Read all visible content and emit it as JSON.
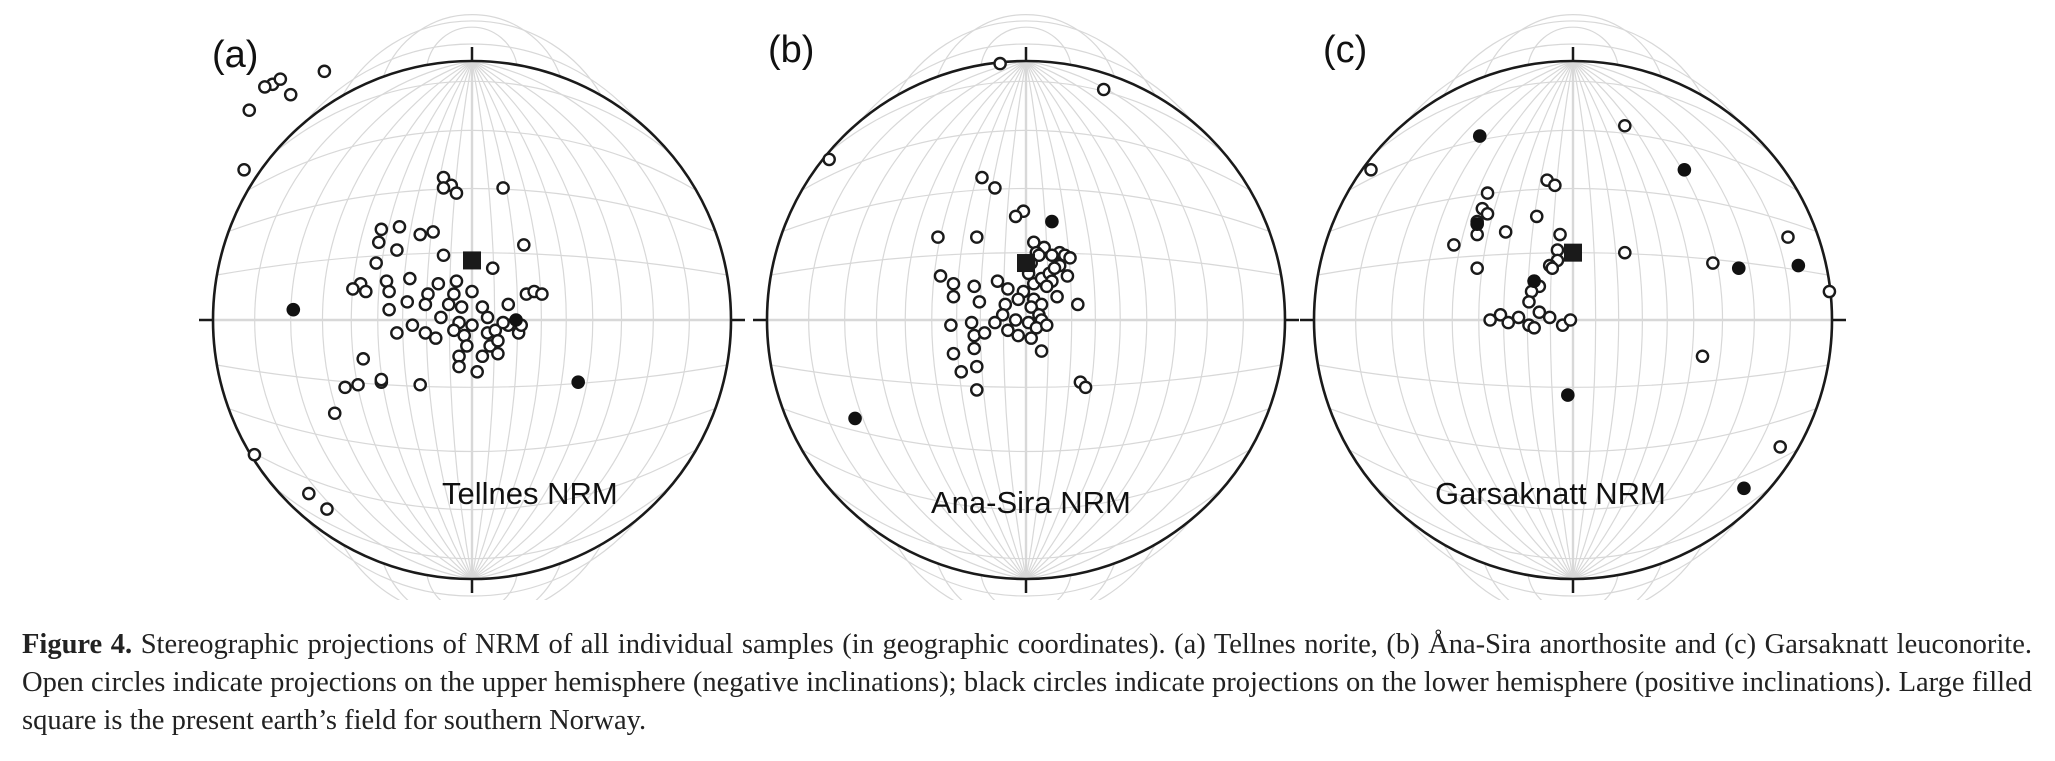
{
  "figure": {
    "panels": [
      {
        "id": "a",
        "label": "(a)",
        "title": "Tellnes NRM",
        "open": [
          [
            -0.77,
            -0.91
          ],
          [
            -0.8,
            -0.9
          ],
          [
            -0.74,
            -0.93
          ],
          [
            -0.57,
            -0.96
          ],
          [
            -0.88,
            -0.58
          ],
          [
            -0.7,
            -0.87
          ],
          [
            -0.86,
            -0.81
          ],
          [
            -0.11,
            -0.55
          ],
          [
            -0.08,
            -0.52
          ],
          [
            -0.06,
            -0.49
          ],
          [
            -0.11,
            -0.51
          ],
          [
            0.12,
            -0.51
          ],
          [
            -0.35,
            -0.35
          ],
          [
            -0.28,
            -0.36
          ],
          [
            -0.15,
            -0.34
          ],
          [
            -0.2,
            -0.33
          ],
          [
            -0.36,
            -0.3
          ],
          [
            -0.29,
            -0.27
          ],
          [
            -0.11,
            -0.25
          ],
          [
            0.2,
            -0.29
          ],
          [
            0.08,
            -0.2
          ],
          [
            -0.37,
            -0.22
          ],
          [
            -0.43,
            -0.14
          ],
          [
            -0.46,
            -0.12
          ],
          [
            -0.41,
            -0.11
          ],
          [
            -0.33,
            -0.15
          ],
          [
            -0.32,
            -0.11
          ],
          [
            -0.24,
            -0.16
          ],
          [
            -0.13,
            -0.14
          ],
          [
            -0.06,
            -0.15
          ],
          [
            0.0,
            -0.11
          ],
          [
            -0.07,
            -0.1
          ],
          [
            -0.17,
            -0.1
          ],
          [
            -0.32,
            -0.04
          ],
          [
            -0.25,
            -0.07
          ],
          [
            -0.18,
            -0.06
          ],
          [
            -0.09,
            -0.06
          ],
          [
            -0.04,
            -0.05
          ],
          [
            0.04,
            -0.05
          ],
          [
            0.06,
            -0.01
          ],
          [
            0.21,
            -0.1
          ],
          [
            0.24,
            -0.11
          ],
          [
            0.27,
            -0.1
          ],
          [
            0.14,
            -0.06
          ],
          [
            -0.23,
            0.02
          ],
          [
            -0.12,
            -0.01
          ],
          [
            -0.05,
            0.01
          ],
          [
            0.0,
            0.02
          ],
          [
            0.14,
            0.02
          ],
          [
            -0.29,
            0.05
          ],
          [
            -0.18,
            0.05
          ],
          [
            -0.14,
            0.07
          ],
          [
            -0.07,
            0.04
          ],
          [
            -0.03,
            0.06
          ],
          [
            -0.02,
            0.1
          ],
          [
            0.06,
            0.05
          ],
          [
            0.07,
            0.1
          ],
          [
            0.1,
            0.13
          ],
          [
            0.04,
            0.14
          ],
          [
            -0.05,
            0.14
          ],
          [
            0.09,
            0.04
          ],
          [
            0.1,
            0.08
          ],
          [
            0.18,
            0.05
          ],
          [
            0.12,
            0.01
          ],
          [
            0.19,
            0.02
          ],
          [
            -0.42,
            0.15
          ],
          [
            -0.35,
            0.24
          ],
          [
            -0.44,
            0.25
          ],
          [
            -0.49,
            0.26
          ],
          [
            -0.2,
            0.25
          ],
          [
            -0.35,
            0.23
          ],
          [
            -0.53,
            0.36
          ],
          [
            -0.84,
            0.52
          ],
          [
            -0.63,
            0.67
          ],
          [
            -0.56,
            0.73
          ],
          [
            -0.05,
            0.18
          ],
          [
            0.02,
            0.2
          ]
        ],
        "filled": [
          [
            -0.69,
            -0.04
          ],
          [
            0.17,
            0.0
          ],
          [
            0.41,
            0.24
          ]
        ],
        "field": [
          0.0,
          -0.23
        ]
      },
      {
        "id": "b",
        "label": "(b)",
        "title": "Ana-Sira NRM",
        "open": [
          [
            -0.1,
            -0.99
          ],
          [
            0.3,
            -0.89
          ],
          [
            -0.76,
            -0.62
          ],
          [
            -0.17,
            -0.55
          ],
          [
            -0.12,
            -0.51
          ],
          [
            -0.01,
            -0.42
          ],
          [
            -0.04,
            -0.4
          ],
          [
            -0.34,
            -0.32
          ],
          [
            -0.19,
            -0.32
          ],
          [
            0.03,
            -0.3
          ],
          [
            0.07,
            -0.28
          ],
          [
            0.04,
            -0.26
          ],
          [
            0.13,
            -0.26
          ],
          [
            0.05,
            -0.25
          ],
          [
            0.1,
            -0.25
          ],
          [
            0.15,
            -0.25
          ],
          [
            0.17,
            -0.24
          ],
          [
            0.02,
            -0.22
          ],
          [
            -0.33,
            -0.17
          ],
          [
            -0.28,
            -0.14
          ],
          [
            -0.2,
            -0.13
          ],
          [
            -0.11,
            -0.15
          ],
          [
            -0.07,
            -0.12
          ],
          [
            -0.01,
            -0.11
          ],
          [
            0.01,
            -0.18
          ],
          [
            0.03,
            -0.14
          ],
          [
            0.06,
            -0.16
          ],
          [
            0.09,
            -0.18
          ],
          [
            0.13,
            -0.21
          ],
          [
            0.11,
            -0.2
          ],
          [
            0.16,
            -0.17
          ],
          [
            0.1,
            -0.15
          ],
          [
            0.08,
            -0.13
          ],
          [
            0.12,
            -0.09
          ],
          [
            -0.28,
            -0.09
          ],
          [
            -0.18,
            -0.07
          ],
          [
            -0.08,
            -0.06
          ],
          [
            -0.03,
            -0.08
          ],
          [
            0.03,
            -0.08
          ],
          [
            0.06,
            -0.06
          ],
          [
            -0.09,
            -0.02
          ],
          [
            0.02,
            -0.05
          ],
          [
            0.05,
            -0.02
          ],
          [
            -0.29,
            0.02
          ],
          [
            -0.21,
            0.01
          ],
          [
            -0.12,
            0.01
          ],
          [
            -0.04,
            0.0
          ],
          [
            0.01,
            0.01
          ],
          [
            0.06,
            0.0
          ],
          [
            0.2,
            -0.06
          ],
          [
            -0.2,
            0.06
          ],
          [
            -0.07,
            0.04
          ],
          [
            -0.03,
            0.06
          ],
          [
            -0.16,
            0.05
          ],
          [
            0.04,
            0.03
          ],
          [
            0.08,
            0.02
          ],
          [
            0.02,
            0.07
          ],
          [
            -0.2,
            0.11
          ],
          [
            -0.28,
            0.13
          ],
          [
            -0.19,
            0.18
          ],
          [
            -0.25,
            0.2
          ],
          [
            0.06,
            0.12
          ],
          [
            0.21,
            0.24
          ],
          [
            0.23,
            0.26
          ],
          [
            -0.19,
            0.27
          ]
        ],
        "filled": [
          [
            0.1,
            -0.38
          ],
          [
            -0.66,
            0.38
          ]
        ],
        "field": [
          0.0,
          -0.22
        ]
      },
      {
        "id": "c",
        "label": "(c)",
        "title": "Garsaknatt NRM",
        "open": [
          [
            -0.78,
            -0.58
          ],
          [
            0.2,
            -0.75
          ],
          [
            -0.33,
            -0.49
          ],
          [
            -0.35,
            -0.43
          ],
          [
            -0.33,
            -0.41
          ],
          [
            -0.37,
            -0.38
          ],
          [
            -0.37,
            -0.33
          ],
          [
            -0.46,
            -0.29
          ],
          [
            -0.26,
            -0.34
          ],
          [
            -0.1,
            -0.54
          ],
          [
            -0.07,
            -0.52
          ],
          [
            -0.14,
            -0.4
          ],
          [
            -0.05,
            -0.33
          ],
          [
            -0.06,
            -0.27
          ],
          [
            -0.06,
            -0.23
          ],
          [
            -0.09,
            -0.21
          ],
          [
            -0.08,
            -0.2
          ],
          [
            0.2,
            -0.26
          ],
          [
            0.54,
            -0.22
          ],
          [
            0.83,
            -0.32
          ],
          [
            -0.37,
            -0.2
          ],
          [
            -0.15,
            -0.15
          ],
          [
            -0.13,
            -0.13
          ],
          [
            -0.16,
            -0.11
          ],
          [
            -0.17,
            -0.07
          ],
          [
            -0.32,
            0.0
          ],
          [
            -0.28,
            -0.02
          ],
          [
            -0.25,
            0.01
          ],
          [
            -0.21,
            -0.01
          ],
          [
            -0.17,
            0.02
          ],
          [
            -0.13,
            -0.03
          ],
          [
            -0.15,
            0.03
          ],
          [
            -0.09,
            -0.01
          ],
          [
            -0.04,
            0.02
          ],
          [
            -0.01,
            0.0
          ],
          [
            0.5,
            0.14
          ],
          [
            0.99,
            -0.11
          ],
          [
            0.8,
            0.49
          ]
        ],
        "filled": [
          [
            -0.36,
            -0.71
          ],
          [
            -0.37,
            -0.37
          ],
          [
            -0.15,
            -0.15
          ],
          [
            0.43,
            -0.58
          ],
          [
            0.64,
            -0.2
          ],
          [
            0.87,
            -0.21
          ],
          [
            -0.02,
            0.29
          ],
          [
            0.66,
            0.65
          ]
        ],
        "field": [
          0.0,
          -0.26
        ]
      }
    ]
  },
  "caption": {
    "label": "Figure 4.",
    "text": " Stereographic projections of NRM of all individual samples (in geographic coordinates). (a) Tellnes norite, (b) Åna-Sira anorthosite and (c) Garsaknatt leuconorite. Open circles indicate projections on the upper hemisphere (negative inclinations); black circles indicate projections on the lower hemisphere (positive inclinations). Large filled square is the present earth’s field for southern Norway."
  }
}
